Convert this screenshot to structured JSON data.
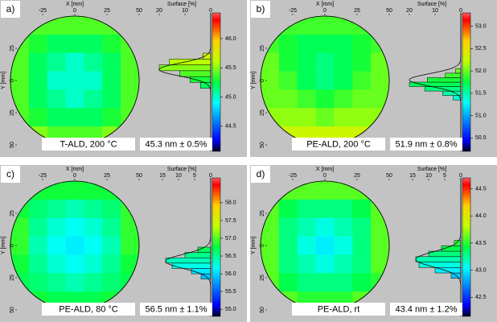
{
  "chart_data": [
    {
      "type": "wafer",
      "label": "a)",
      "xlabel": "X [mm]",
      "ylabel": "Y [mm]",
      "surface_label": "Surface [%]",
      "condition": "T-ALD, 200 °C",
      "result": "45.3 nm ± 0.5%",
      "xlim": [
        -50,
        50
      ],
      "xticks": [
        -25,
        0,
        25,
        50
      ],
      "ylim": [
        -50,
        50
      ],
      "y_inverted": true,
      "yticks": [
        {
          "value": -25,
          "label": "25"
        },
        0,
        25,
        50
      ],
      "clim": [
        44.07,
        46.44
      ],
      "cticks": [
        44.5,
        {
          "value": 45,
          "label": "45.0"
        },
        45.5,
        {
          "value": 46,
          "label": "46.0"
        }
      ],
      "surface_lim": [
        22.5,
        0
      ],
      "surface_ticks": [
        20,
        10,
        0
      ],
      "grid": [
        [
          null,
          45.4,
          45.4,
          45.4,
          45.4,
          45.4,
          null
        ],
        [
          45.4,
          45.3,
          45.2,
          45.2,
          45.2,
          45.3,
          45.4
        ],
        [
          45.4,
          45.2,
          45.1,
          45.0,
          45.1,
          45.2,
          45.4
        ],
        [
          45.4,
          45.2,
          45.0,
          45.0,
          45.0,
          45.2,
          45.4
        ],
        [
          45.4,
          45.2,
          45.1,
          45.0,
          45.1,
          45.2,
          45.4
        ],
        [
          45.4,
          45.3,
          45.2,
          45.2,
          45.2,
          45.3,
          45.4
        ],
        [
          null,
          45.5,
          45.4,
          45.4,
          45.4,
          45.5,
          null
        ]
      ],
      "bins": [
        45.15,
        45.25,
        45.35,
        45.45,
        45.55,
        45.65,
        45.75
      ],
      "counts": [
        4,
        8,
        12,
        20,
        16,
        3
      ],
      "fit": {
        "mean": 45.47,
        "sigma": 0.11,
        "peak": 20
      }
    },
    {
      "type": "wafer",
      "label": "b)",
      "xlabel": "X [mm]",
      "ylabel": "Y [mm]",
      "surface_label": "Surface [%]",
      "condition": "PE-ALD, 200 °C",
      "result": "51.9 nm ± 0.8%",
      "xlim": [
        -50,
        50
      ],
      "xticks": [
        -25,
        0,
        25,
        50
      ],
      "ylim": [
        -50,
        50
      ],
      "y_inverted": true,
      "yticks": [
        {
          "value": -25,
          "label": "25"
        },
        0,
        25,
        50
      ],
      "clim": [
        50.2,
        53.3
      ],
      "cticks": [
        50.5,
        {
          "value": 51,
          "label": "51.0"
        },
        51.5,
        {
          "value": 52,
          "label": "52.0"
        },
        52.5,
        {
          "value": 53,
          "label": "53.0"
        }
      ],
      "surface_lim": [
        22.5,
        0
      ],
      "surface_ticks": [
        20,
        10,
        0
      ],
      "grid": [
        [
          null,
          51.9,
          51.9,
          51.9,
          51.9,
          51.9,
          null
        ],
        [
          51.9,
          51.8,
          51.7,
          51.7,
          51.7,
          51.8,
          51.9
        ],
        [
          52.0,
          51.8,
          51.7,
          51.6,
          51.7,
          51.8,
          52.0
        ],
        [
          52.0,
          51.9,
          51.7,
          51.6,
          51.7,
          51.9,
          52.0
        ],
        [
          52.0,
          52.0,
          51.9,
          51.8,
          51.9,
          52.0,
          52.0
        ],
        [
          52.1,
          52.1,
          52.1,
          52.0,
          52.1,
          52.1,
          52.1
        ],
        [
          null,
          52.3,
          52.3,
          52.3,
          52.3,
          52.3,
          null
        ]
      ],
      "bins": [
        51.35,
        51.45,
        51.55,
        51.65,
        51.75,
        51.85,
        51.95,
        52.05
      ],
      "counts": [
        3,
        7,
        14,
        20,
        13,
        6,
        2
      ],
      "fit": {
        "mean": 51.8,
        "sigma": 0.14,
        "peak": 20
      }
    },
    {
      "type": "wafer",
      "label": "c)",
      "xlabel": "X [mm]",
      "ylabel": "Y [mm]",
      "surface_label": "Surface [%]",
      "condition": "PE-ALD, 80 °C",
      "result": "56.5 nm ± 1.1%",
      "xlim": [
        -50,
        50
      ],
      "xticks": [
        -25,
        0,
        25,
        50
      ],
      "ylim": [
        -50,
        50
      ],
      "y_inverted": true,
      "yticks": [
        {
          "value": -25,
          "label": "25"
        },
        0,
        25,
        50
      ],
      "clim": [
        54.8,
        58.7
      ],
      "cticks": [
        {
          "value": 55,
          "label": "55.0"
        },
        55.5,
        {
          "value": 56,
          "label": "56.0"
        },
        56.5,
        {
          "value": 57,
          "label": "57.0"
        },
        57.5,
        {
          "value": 58,
          "label": "58.0"
        }
      ],
      "surface_lim": [
        18,
        0
      ],
      "surface_ticks": [
        15,
        10,
        5,
        0
      ],
      "grid": [
        [
          null,
          56.8,
          56.8,
          56.8,
          56.8,
          56.8,
          null
        ],
        [
          56.8,
          56.6,
          56.5,
          56.4,
          56.5,
          56.6,
          56.9
        ],
        [
          56.9,
          56.5,
          56.3,
          56.2,
          56.3,
          56.5,
          56.9
        ],
        [
          56.9,
          56.4,
          56.2,
          56.1,
          56.2,
          56.4,
          56.9
        ],
        [
          56.8,
          56.5,
          56.3,
          56.2,
          56.3,
          56.5,
          56.8
        ],
        [
          56.7,
          56.6,
          56.5,
          56.4,
          56.5,
          56.6,
          56.7
        ],
        [
          null,
          56.8,
          56.7,
          56.7,
          56.7,
          56.8,
          null
        ]
      ],
      "bins": [
        55.85,
        56.0,
        56.15,
        56.3,
        56.45,
        56.6,
        56.75
      ],
      "counts": [
        3,
        6,
        12,
        14,
        8,
        4
      ],
      "fit": {
        "mean": 56.35,
        "sigma": 0.2,
        "peak": 14
      }
    },
    {
      "type": "wafer",
      "label": "d)",
      "xlabel": "X [mm]",
      "ylabel": "Y [mm]",
      "surface_label": "Surface [%]",
      "condition": "PE-ALD, rt",
      "result": "43.4 nm ± 1.2%",
      "xlim": [
        -50,
        50
      ],
      "xticks": [
        -25,
        0,
        25,
        50
      ],
      "ylim": [
        -50,
        50
      ],
      "y_inverted": true,
      "yticks": [
        {
          "value": -25,
          "label": "25"
        },
        0,
        25,
        50
      ],
      "clim": [
        42.15,
        44.7
      ],
      "cticks": [
        42.5,
        {
          "value": 43,
          "label": "43.0"
        },
        43.5,
        {
          "value": 44,
          "label": "44.0"
        },
        44.5
      ],
      "surface_lim": [
        18,
        0
      ],
      "surface_ticks": [
        15,
        10,
        5,
        0
      ],
      "grid": [
        [
          null,
          43.6,
          43.6,
          43.6,
          43.6,
          43.6,
          null
        ],
        [
          43.6,
          43.4,
          43.3,
          43.3,
          43.3,
          43.4,
          43.6
        ],
        [
          43.6,
          43.3,
          43.2,
          43.1,
          43.2,
          43.3,
          43.6
        ],
        [
          43.6,
          43.3,
          43.1,
          43.0,
          43.1,
          43.3,
          43.6
        ],
        [
          43.6,
          43.3,
          43.2,
          43.1,
          43.2,
          43.3,
          43.6
        ],
        [
          43.6,
          43.4,
          43.3,
          43.3,
          43.3,
          43.4,
          43.5
        ],
        [
          null,
          43.6,
          43.5,
          43.5,
          43.5,
          43.6,
          null
        ]
      ],
      "bins": [
        42.85,
        42.95,
        43.05,
        43.15,
        43.25,
        43.35,
        43.45,
        43.55
      ],
      "counts": [
        3,
        8,
        13,
        14,
        10,
        6,
        2
      ],
      "fit": {
        "mean": 43.2,
        "sigma": 0.14,
        "peak": 14
      }
    }
  ]
}
